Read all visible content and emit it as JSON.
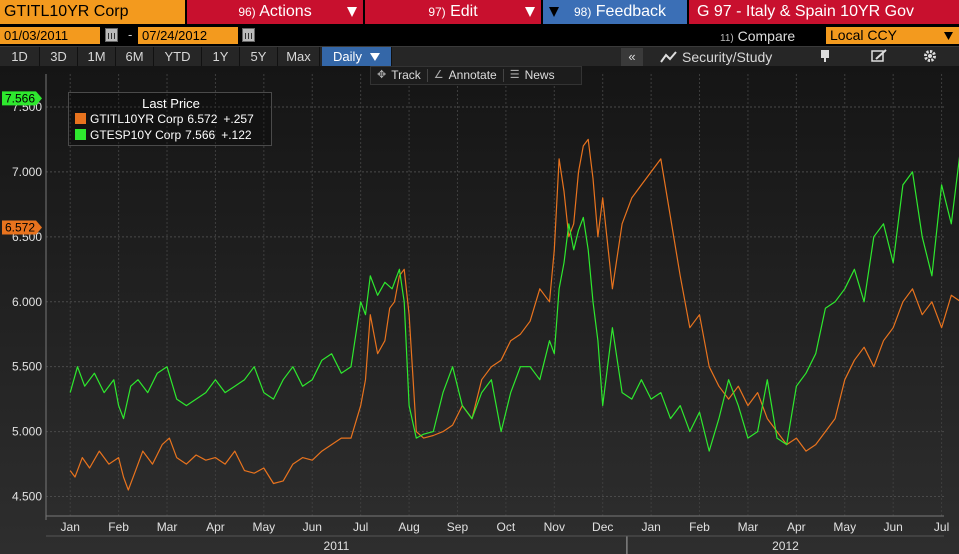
{
  "topbar": {
    "ticker": "GTITL10YR Corp",
    "actions": {
      "num": "96)",
      "label": "Actions"
    },
    "edit": {
      "num": "97)",
      "label": "Edit"
    },
    "feedback": {
      "num": "98)",
      "label": "Feedback"
    },
    "title": "G 97 - Italy & Spain 10YR Gov"
  },
  "datebar": {
    "start": "01/03/2011",
    "dash": "-",
    "end": "07/24/2012",
    "compare_num": "11)",
    "compare_label": "Compare",
    "currency": "Local CCY"
  },
  "rangebar": {
    "items": [
      "1D",
      "3D",
      "1M",
      "6M",
      "YTD",
      "1Y",
      "5Y",
      "Max"
    ],
    "period": "Daily",
    "collapse": "«",
    "study": "Security/Study"
  },
  "tools": {
    "track": "Track",
    "annotate": "Annotate",
    "news": "News"
  },
  "legend": {
    "title": "Last Price",
    "rows": [
      {
        "name": "GTITL10YR Corp",
        "value": "6.572",
        "change": "+.257",
        "color": "#e8731e"
      },
      {
        "name": "GTESP10Y Corp",
        "value": "7.566",
        "change": "+.122",
        "color": "#2ee82e"
      }
    ]
  },
  "colors": {
    "italy": "#e8731e",
    "spain": "#2ee82e",
    "orange": "#f39a1e",
    "red": "#c8102e",
    "blue": "#3b6fb6"
  },
  "chart_data": {
    "type": "line",
    "x_unit": "month",
    "x_ticks": [
      "Jan",
      "Feb",
      "Mar",
      "Apr",
      "May",
      "Jun",
      "Jul",
      "Aug",
      "Sep",
      "Oct",
      "Nov",
      "Dec",
      "Jan",
      "Feb",
      "Mar",
      "Apr",
      "May",
      "Jun",
      "Jul"
    ],
    "years": [
      "2011",
      "2012"
    ],
    "ylim": [
      4.35,
      7.6
    ],
    "y_ticks": [
      "4.500",
      "5.000",
      "5.500",
      "6.000",
      "6.500",
      "7.000",
      "7.500"
    ],
    "y_tick_values": [
      4.5,
      5.0,
      5.5,
      6.0,
      6.5,
      7.0,
      7.5
    ],
    "last_labels": [
      {
        "text": "7.566",
        "value": 7.566,
        "color": "#2ee82e"
      },
      {
        "text": "6.572",
        "value": 6.572,
        "color": "#e8731e"
      }
    ],
    "series": [
      {
        "name": "GTITL10YR Corp",
        "color": "#e8731e",
        "x": [
          0.0,
          0.1,
          0.25,
          0.4,
          0.6,
          0.8,
          1.0,
          1.1,
          1.2,
          1.35,
          1.5,
          1.7,
          1.9,
          2.05,
          2.2,
          2.4,
          2.6,
          2.8,
          3.0,
          3.2,
          3.4,
          3.6,
          3.8,
          4.0,
          4.2,
          4.4,
          4.6,
          4.8,
          5.0,
          5.2,
          5.4,
          5.6,
          5.8,
          6.0,
          6.1,
          6.2,
          6.35,
          6.5,
          6.6,
          6.7,
          6.8,
          6.9,
          7.0,
          7.15,
          7.3,
          7.5,
          7.7,
          7.9,
          8.1,
          8.3,
          8.5,
          8.7,
          8.9,
          9.1,
          9.3,
          9.5,
          9.7,
          9.9,
          10.0,
          10.1,
          10.2,
          10.3,
          10.4,
          10.5,
          10.6,
          10.7,
          10.8,
          10.9,
          11.0,
          11.2,
          11.4,
          11.6,
          11.8,
          12.0,
          12.2,
          12.4,
          12.6,
          12.8,
          13.0,
          13.2,
          13.4,
          13.6,
          13.8,
          14.0,
          14.2,
          14.4,
          14.6,
          14.8,
          15.0,
          15.2,
          15.4,
          15.6,
          15.8,
          16.0,
          16.2,
          16.4,
          16.6,
          16.8,
          17.0,
          17.2,
          17.4,
          17.6,
          17.8,
          18.0,
          18.2,
          18.4,
          18.55
        ],
        "values": [
          4.7,
          4.65,
          4.8,
          4.72,
          4.85,
          4.75,
          4.8,
          4.65,
          4.55,
          4.7,
          4.85,
          4.75,
          4.9,
          4.95,
          4.8,
          4.75,
          4.82,
          4.78,
          4.8,
          4.75,
          4.85,
          4.7,
          4.68,
          4.72,
          4.6,
          4.62,
          4.75,
          4.8,
          4.78,
          4.85,
          4.9,
          4.95,
          4.95,
          5.2,
          5.4,
          5.9,
          5.6,
          5.7,
          5.95,
          6.0,
          6.2,
          6.25,
          5.9,
          5.0,
          4.95,
          4.97,
          5.0,
          5.05,
          5.2,
          5.1,
          5.4,
          5.5,
          5.55,
          5.7,
          5.75,
          5.85,
          6.1,
          6.0,
          6.4,
          7.1,
          6.85,
          6.5,
          6.6,
          7.0,
          7.2,
          7.25,
          6.95,
          6.5,
          6.8,
          6.1,
          6.6,
          6.8,
          6.9,
          7.0,
          7.1,
          6.65,
          6.2,
          5.8,
          5.9,
          5.5,
          5.35,
          5.25,
          5.35,
          5.2,
          5.3,
          5.1,
          5.0,
          4.9,
          4.95,
          4.85,
          4.9,
          5.0,
          5.1,
          5.4,
          5.55,
          5.65,
          5.5,
          5.7,
          5.8,
          6.0,
          6.1,
          5.9,
          6.0,
          5.8,
          6.05,
          6.0,
          6.572
        ]
      },
      {
        "name": "GTESP10Y Corp",
        "color": "#2ee82e",
        "x": [
          0.0,
          0.15,
          0.3,
          0.5,
          0.7,
          0.9,
          1.0,
          1.1,
          1.25,
          1.4,
          1.6,
          1.8,
          2.0,
          2.2,
          2.4,
          2.6,
          2.8,
          3.0,
          3.2,
          3.4,
          3.6,
          3.8,
          4.0,
          4.2,
          4.4,
          4.6,
          4.8,
          5.0,
          5.2,
          5.4,
          5.6,
          5.8,
          6.0,
          6.1,
          6.2,
          6.35,
          6.5,
          6.65,
          6.8,
          6.9,
          7.0,
          7.15,
          7.3,
          7.5,
          7.7,
          7.9,
          8.1,
          8.3,
          8.5,
          8.7,
          8.9,
          9.1,
          9.3,
          9.5,
          9.7,
          9.9,
          10.0,
          10.1,
          10.2,
          10.3,
          10.4,
          10.5,
          10.6,
          10.7,
          10.8,
          10.9,
          11.0,
          11.2,
          11.4,
          11.6,
          11.8,
          12.0,
          12.2,
          12.4,
          12.6,
          12.8,
          13.0,
          13.2,
          13.4,
          13.6,
          13.8,
          14.0,
          14.2,
          14.4,
          14.6,
          14.8,
          15.0,
          15.2,
          15.4,
          15.6,
          15.8,
          16.0,
          16.2,
          16.4,
          16.6,
          16.8,
          17.0,
          17.2,
          17.4,
          17.6,
          17.8,
          18.0,
          18.2,
          18.4,
          18.55
        ],
        "values": [
          5.3,
          5.5,
          5.35,
          5.45,
          5.3,
          5.4,
          5.2,
          5.1,
          5.35,
          5.4,
          5.3,
          5.45,
          5.5,
          5.25,
          5.2,
          5.25,
          5.3,
          5.4,
          5.3,
          5.35,
          5.4,
          5.5,
          5.3,
          5.25,
          5.4,
          5.5,
          5.35,
          5.4,
          5.55,
          5.6,
          5.45,
          5.5,
          6.0,
          5.9,
          6.2,
          6.05,
          6.15,
          6.1,
          6.25,
          6.0,
          5.2,
          4.95,
          4.98,
          5.0,
          5.3,
          5.5,
          5.2,
          5.1,
          5.3,
          5.4,
          5.0,
          5.3,
          5.5,
          5.5,
          5.4,
          5.7,
          5.6,
          6.1,
          6.3,
          6.6,
          6.4,
          6.55,
          6.65,
          6.4,
          6.0,
          5.7,
          5.2,
          5.8,
          5.3,
          5.25,
          5.4,
          5.25,
          5.3,
          5.1,
          5.2,
          5.0,
          5.15,
          4.85,
          5.1,
          5.4,
          5.2,
          4.95,
          5.0,
          5.4,
          4.95,
          4.9,
          5.35,
          5.45,
          5.6,
          5.95,
          6.0,
          6.1,
          6.25,
          6.0,
          6.5,
          6.6,
          6.3,
          6.9,
          7.0,
          6.5,
          6.2,
          6.9,
          6.6,
          7.2,
          7.566
        ]
      }
    ]
  }
}
